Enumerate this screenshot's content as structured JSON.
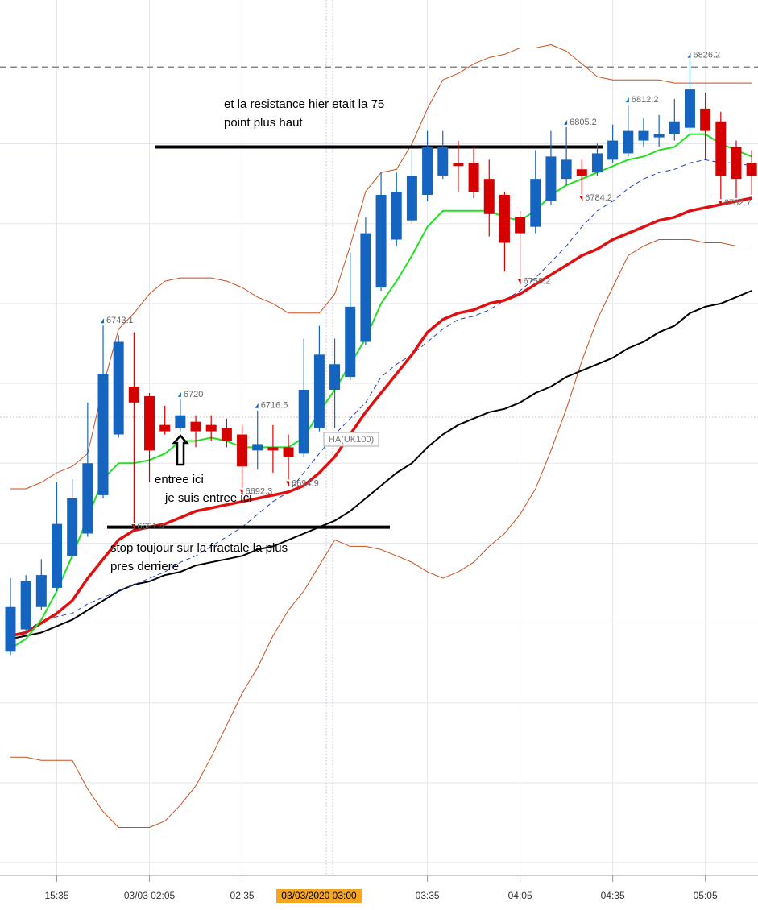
{
  "chart_data": {
    "type": "candlestick",
    "categories": [
      null,
      null,
      null,
      "15:35",
      null,
      null,
      null,
      null,
      null,
      "03/03 02:05",
      null,
      null,
      null,
      null,
      null,
      "02:35",
      null,
      null,
      null,
      null,
      null,
      null,
      null,
      null,
      null,
      null,
      null,
      "03:35",
      null,
      null,
      null,
      null,
      null,
      "04:05",
      null,
      null,
      null,
      null,
      null,
      "04:35",
      null,
      null,
      null,
      null,
      null,
      "05:05",
      null,
      null,
      null
    ],
    "open": [
      6641,
      6648,
      6655,
      6661,
      6671,
      6678,
      6690,
      6709,
      6724,
      6721,
      6712,
      6711,
      6713,
      6712,
      6711,
      6709,
      6704,
      6705,
      6705,
      6703,
      6711,
      6723,
      6727,
      6738,
      6755,
      6770,
      6776,
      6784,
      6790,
      6794,
      6794,
      6789,
      6784,
      6777,
      6774,
      6782,
      6789,
      6792,
      6791,
      6795,
      6797,
      6801,
      6802,
      6803,
      6805,
      6811,
      6807,
      6799,
      6794
    ],
    "high": [
      6664,
      6665,
      6670,
      6694,
      6695,
      6719,
      6743.1,
      6740,
      6741,
      6722,
      6718,
      6720,
      6715,
      6715,
      6714,
      6712,
      6716.5,
      6712,
      6709,
      6739,
      6743,
      6739,
      6766,
      6777,
      6791,
      6791,
      6798,
      6804,
      6804,
      6801,
      6799,
      6795,
      6785,
      6779,
      6798,
      6804,
      6805.2,
      6795,
      6800,
      6806,
      6812.2,
      6808,
      6809,
      6814,
      6826.2,
      6816,
      6810,
      6801,
      6798
    ],
    "low": [
      6640,
      6647,
      6654,
      6660,
      6670,
      6677,
      6689,
      6708,
      6681.4,
      6694,
      6709,
      6710,
      6705,
      6707,
      6705,
      6692.3,
      6698,
      6697,
      6694.9,
      6702,
      6710,
      6711,
      6726,
      6737,
      6754,
      6768,
      6775,
      6782,
      6789,
      6785,
      6783,
      6771,
      6760,
      6758.2,
      6772,
      6781,
      6787,
      6784.2,
      6790,
      6794,
      6796,
      6799,
      6799,
      6801,
      6804,
      6795,
      6782.7,
      6783,
      6784
    ],
    "close": [
      6655,
      6663,
      6665,
      6681,
      6689,
      6700,
      6728,
      6738,
      6719,
      6704,
      6710,
      6715,
      6710,
      6710,
      6707,
      6699,
      6706,
      6704,
      6702,
      6723,
      6734,
      6731,
      6749,
      6772,
      6784,
      6785,
      6790,
      6799,
      6799,
      6793,
      6785,
      6778,
      6769,
      6772,
      6789,
      6796,
      6795,
      6790,
      6797,
      6801,
      6804,
      6804,
      6803,
      6807,
      6817,
      6804,
      6790,
      6789,
      6790
    ],
    "up_color": "#1565c0",
    "down_color": "#d50000",
    "ylim": [
      6571,
      6845
    ],
    "ygrid": [
      6800,
      6775,
      6750,
      6725,
      6700,
      6675,
      6650,
      6625,
      6600,
      6575
    ],
    "series": [
      {
        "color": "#c8501e",
        "width": 1,
        "dash": false,
        "values": [
          6692,
          6692,
          6694,
          6697,
          6699,
          6703,
          6724,
          6742,
          6747,
          6753,
          6757,
          6758,
          6758,
          6758,
          6757,
          6755,
          6752,
          6750,
          6747,
          6747,
          6747,
          6753,
          6768,
          6785,
          6791,
          6792,
          6800,
          6811,
          6820,
          6822,
          6825,
          6827,
          6828,
          6830,
          6830,
          6831,
          6829,
          6825,
          6821,
          6820,
          6820,
          6820,
          6820,
          6819,
          6819,
          6819,
          6819,
          6819,
          6819
        ]
      },
      {
        "color": "#c8501e",
        "width": 1,
        "dash": false,
        "values": [
          6608,
          6608,
          6607,
          6607,
          6607,
          6598,
          6591,
          6586,
          6586,
          6586,
          6588,
          6593,
          6599,
          6608,
          6618,
          6628,
          6636,
          6646,
          6654,
          6660,
          6668,
          6676,
          6674,
          6674,
          6673,
          6671,
          6669,
          6666,
          6664,
          6666,
          6669,
          6674,
          6678,
          6684,
          6692,
          6704,
          6717,
          6732,
          6745,
          6755,
          6765,
          6768,
          6770,
          6770,
          6770,
          6769,
          6769,
          6768,
          6768
        ]
      },
      {
        "color": "#000000",
        "width": 2,
        "dash": false,
        "values": [
          6645,
          6646,
          6647,
          6649,
          6651,
          6654,
          6657,
          6660,
          6662,
          6663,
          6665,
          6666,
          6668,
          6669,
          6670,
          6671,
          6673,
          6674,
          6676,
          6678,
          6680,
          6682,
          6685,
          6689,
          6693,
          6697,
          6700,
          6705,
          6709,
          6712,
          6714,
          6716,
          6717,
          6719,
          6722,
          6724,
          6727,
          6729,
          6731,
          6733,
          6736,
          6738,
          6741,
          6743,
          6747,
          6749,
          6750,
          6752,
          6754
        ]
      },
      {
        "color": "#2040c0",
        "width": 1,
        "dash": true,
        "values": [
          6646,
          6647,
          6651,
          6652,
          6653,
          6656,
          6658,
          6660,
          6662,
          6664,
          6666,
          6669,
          6671,
          6674,
          6677,
          6680,
          6684,
          6688,
          6691,
          6697,
          6703,
          6709,
          6714,
          6719,
          6727,
          6731,
          6734,
          6738,
          6742,
          6745,
          6746,
          6748,
          6751,
          6754,
          6758,
          6763,
          6768,
          6774,
          6779,
          6782,
          6786,
          6789,
          6791,
          6792,
          6794,
          6795,
          6794,
          6794,
          6793
        ]
      },
      {
        "color": "#e01010",
        "width": 3.5,
        "dash": false,
        "values": [
          6646,
          6647,
          6650,
          6653,
          6657,
          6664,
          6670,
          6676,
          6679,
          6680,
          6681,
          6683,
          6685,
          6686,
          6687,
          6688,
          6689,
          6690,
          6691,
          6693,
          6697,
          6702,
          6709,
          6716,
          6722,
          6728,
          6734,
          6741,
          6745,
          6747,
          6748,
          6750,
          6751,
          6753,
          6756,
          6759,
          6762,
          6765,
          6767,
          6770,
          6772,
          6774,
          6776,
          6777,
          6779,
          6780,
          6781,
          6782,
          6783
        ]
      },
      {
        "color": "#22e022",
        "width": 2,
        "dash": false,
        "values": [
          6642,
          6645,
          6651,
          6660,
          6671,
          6683,
          6695,
          6700,
          6700,
          6701,
          6703,
          6707,
          6707,
          6708,
          6707,
          6705,
          6705,
          6705,
          6705,
          6708,
          6716,
          6723,
          6731,
          6739,
          6750,
          6757,
          6765,
          6774,
          6779,
          6779,
          6779,
          6779,
          6777,
          6776,
          6779,
          6784,
          6787,
          6789,
          6791,
          6793,
          6795,
          6796,
          6798,
          6799,
          6803,
          6803,
          6800,
          6798,
          6796
        ]
      }
    ],
    "fractals": [
      {
        "value": 6743.1,
        "direction": "up"
      },
      {
        "value": 6720,
        "direction": "up"
      },
      {
        "value": 6716.5,
        "direction": "up"
      },
      {
        "value": 6805.2,
        "direction": "up"
      },
      {
        "value": 6812.2,
        "direction": "up"
      },
      {
        "value": 6826.2,
        "direction": "up"
      },
      {
        "value": 6681.4,
        "direction": "down"
      },
      {
        "value": 6692.3,
        "direction": "down"
      },
      {
        "value": 6694.9,
        "direction": "down"
      },
      {
        "value": 6758.2,
        "direction": "down"
      },
      {
        "value": 6784.2,
        "direction": "down"
      },
      {
        "value": 6782.7,
        "direction": "down"
      }
    ],
    "level_lines": [
      {
        "value": 6824,
        "color": "#888888",
        "dash": true
      },
      {
        "value": 6799,
        "color": "#000000",
        "dash": false
      },
      {
        "value": 6680,
        "color": "#000000",
        "dash": false
      }
    ],
    "annotations": [
      "et la resistance hier etait la 75",
      "point plus haut",
      "entree ici",
      "je suis entree ici",
      "stop toujour sur la fractale la plus",
      "pres derriere"
    ],
    "overlay_label": "HA(UK100)",
    "crosshair_label": "03/03/2020 03:00"
  }
}
